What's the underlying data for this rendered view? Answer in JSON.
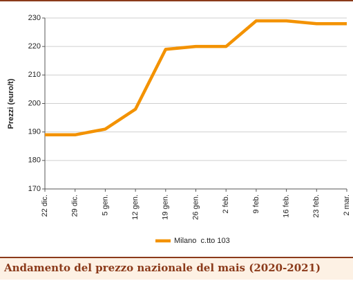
{
  "chart_data": {
    "type": "line",
    "title": "Andamento del prezzo nazionale del mais (2020-2021)",
    "y_label": "Prezzi (euro/t)",
    "categories": [
      "22 dic.",
      "29 dic.",
      "5 gen.",
      "12 gen.",
      "19 gen.",
      "26 gen.",
      "2 feb.",
      "9 feb.",
      "16 feb.",
      "23 feb.",
      "2 mar."
    ],
    "series": [
      {
        "name": "Milano  c.tto 103",
        "color": "#f39200",
        "values": [
          189,
          189,
          191,
          198,
          219,
          220,
          220,
          229,
          229,
          228,
          228
        ]
      }
    ],
    "ylim": [
      170,
      230
    ],
    "yticks": [
      170,
      180,
      190,
      200,
      210,
      220,
      230
    ],
    "grid": true
  }
}
